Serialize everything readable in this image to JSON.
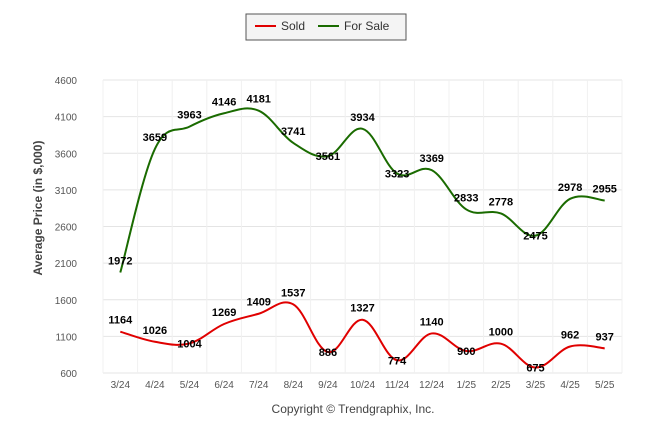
{
  "chart_data": {
    "type": "line",
    "ylabel": "Average Price (in $,000)",
    "credit": "Copyright © Trendgraphix, Inc.",
    "categories": [
      "3/24",
      "4/24",
      "5/24",
      "6/24",
      "7/24",
      "8/24",
      "9/24",
      "10/24",
      "11/24",
      "12/24",
      "1/25",
      "2/25",
      "3/25",
      "4/25",
      "5/25"
    ],
    "ylim": [
      600,
      4600
    ],
    "yticks": [
      600,
      1100,
      1600,
      2100,
      2600,
      3100,
      3600,
      4100,
      4600
    ],
    "grid": true,
    "legend_position": "top-center",
    "series": [
      {
        "name": "Sold",
        "color": "#e00000",
        "values": [
          1164,
          1026,
          1004,
          1269,
          1409,
          1537,
          886,
          1327,
          774,
          1140,
          900,
          1000,
          675,
          962,
          937
        ]
      },
      {
        "name": "For Sale",
        "color": "#1a6b00",
        "values": [
          1972,
          3659,
          3963,
          4146,
          4181,
          3741,
          3561,
          3934,
          3323,
          3369,
          2833,
          2778,
          2475,
          2978,
          2955
        ]
      }
    ]
  }
}
